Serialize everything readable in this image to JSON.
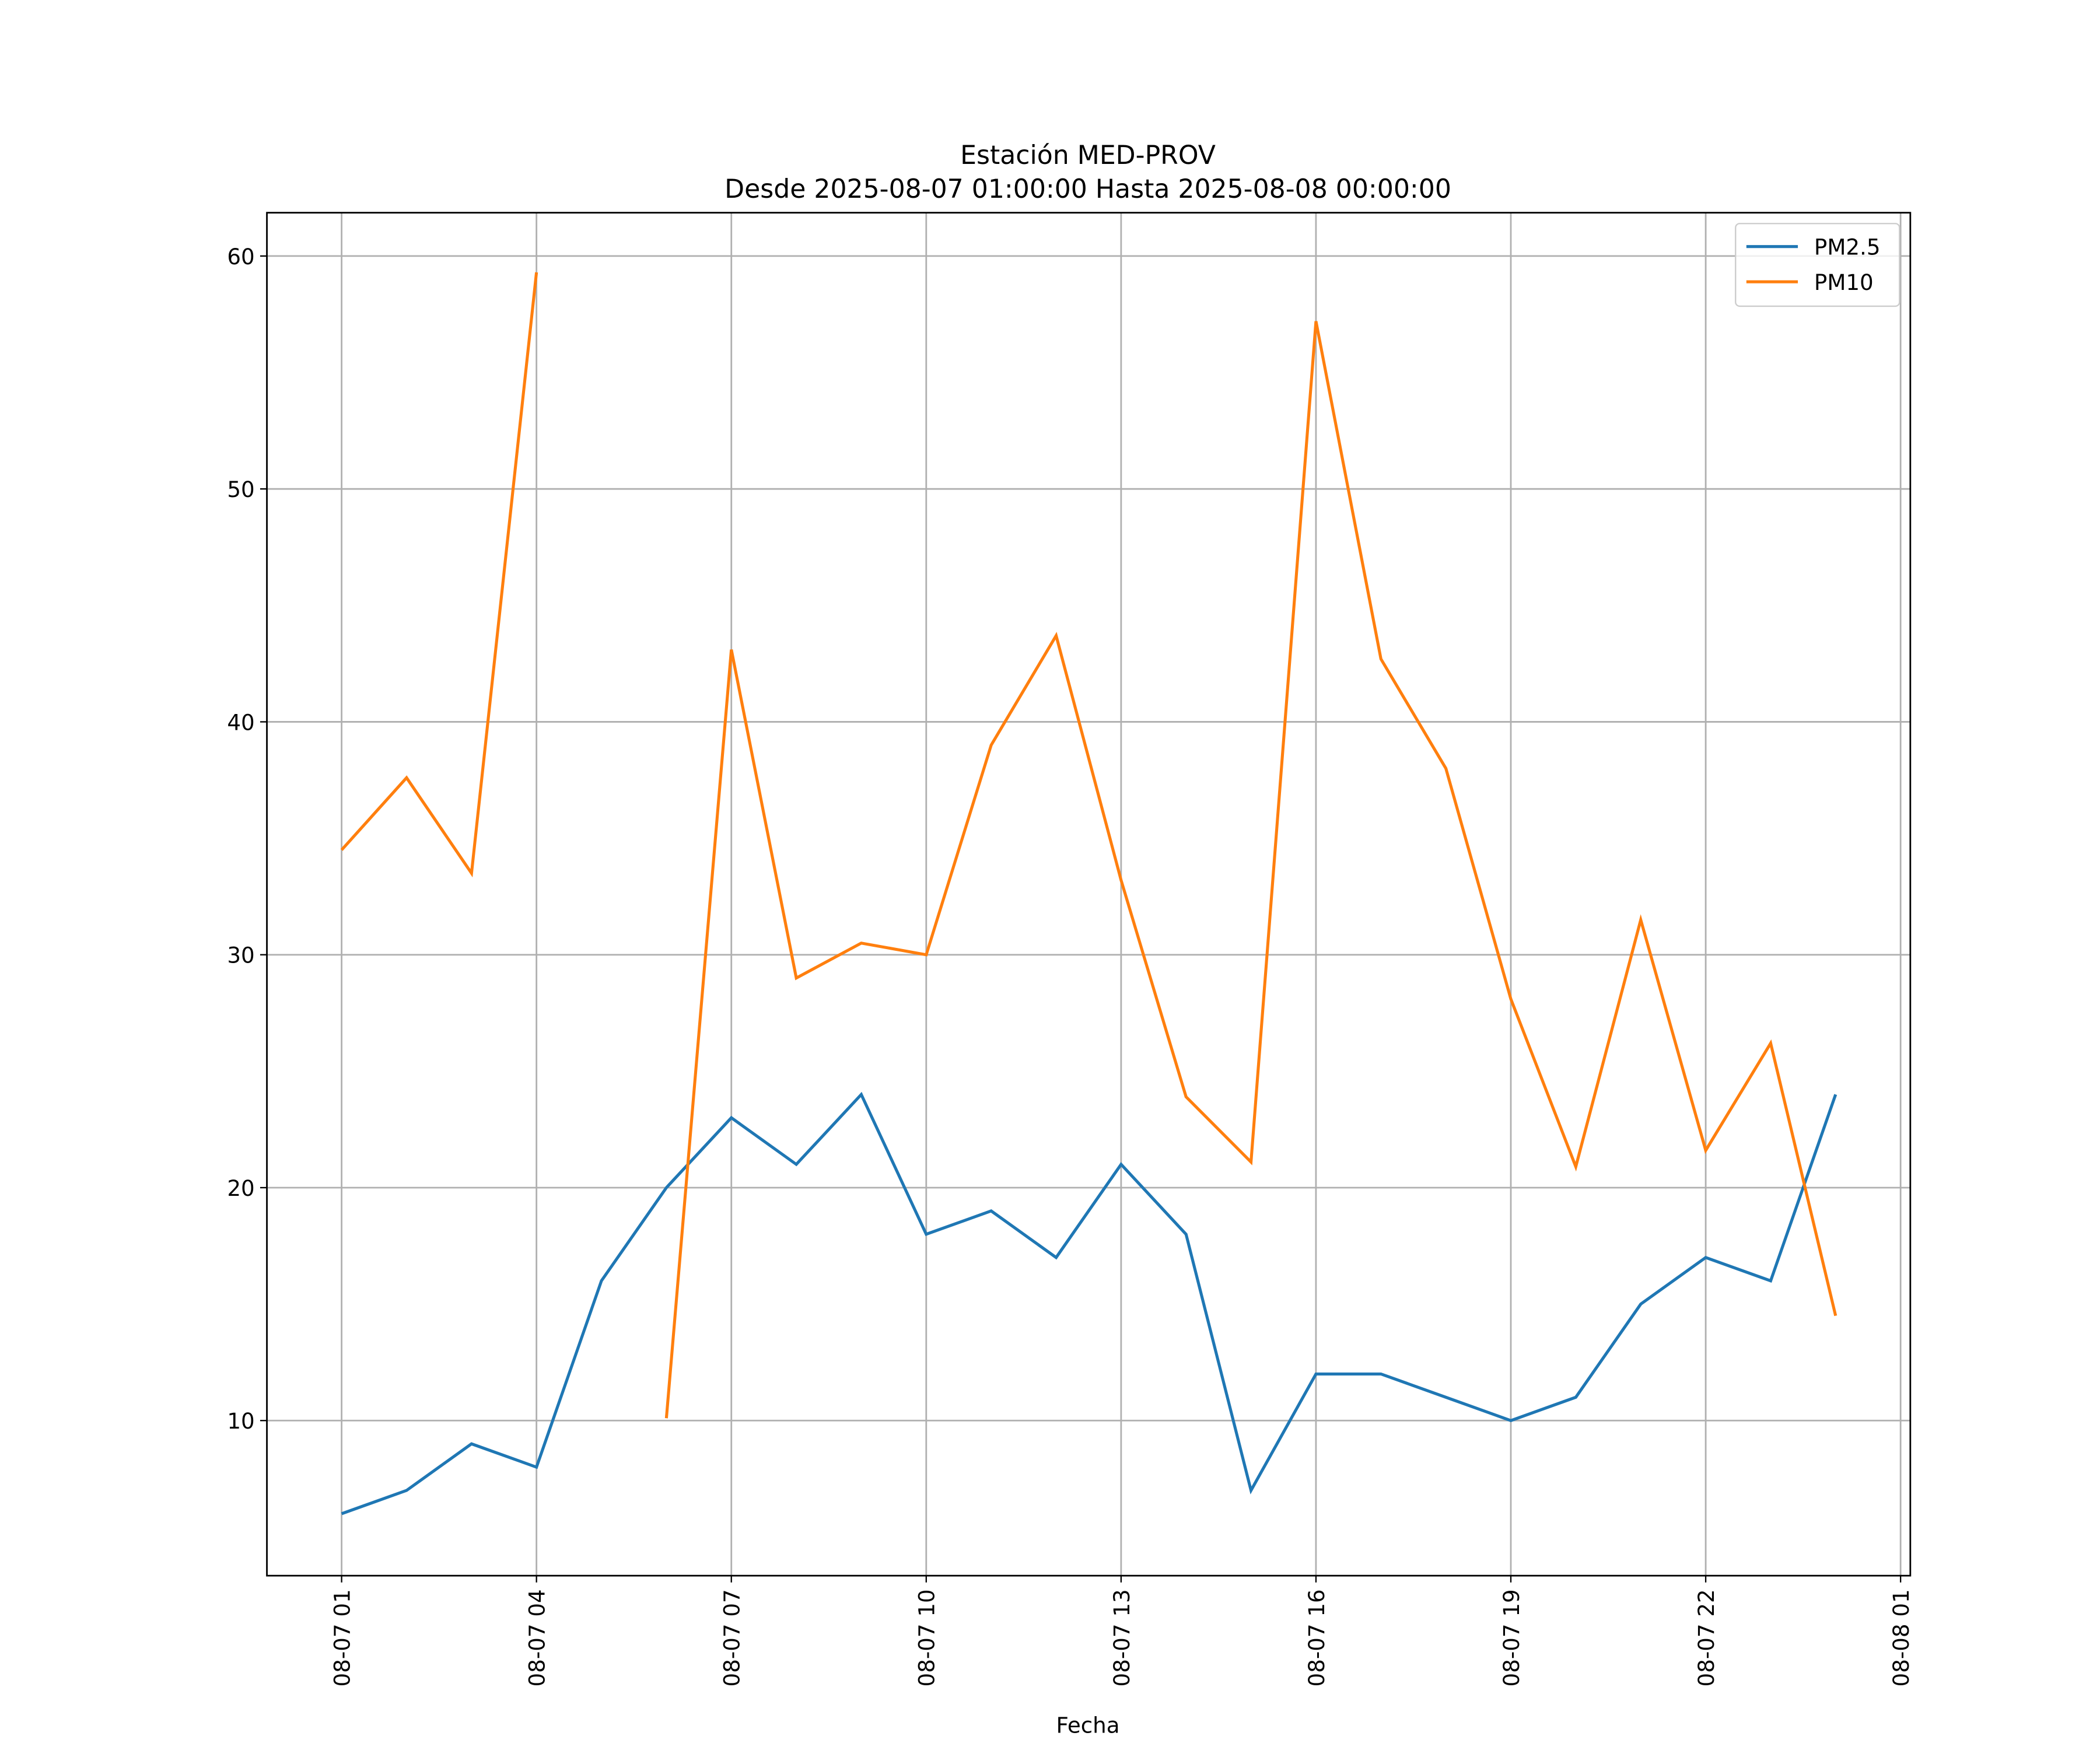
{
  "chart_data": {
    "type": "line",
    "title": "Estación MED-PROV",
    "subtitle": "Desde 2025-08-07 01:00:00 Hasta 2025-08-08 00:00:00",
    "xlabel": "Fecha",
    "x": [
      "08-07 01",
      "08-07 02",
      "08-07 03",
      "08-07 04",
      "08-07 05",
      "08-07 06",
      "08-07 07",
      "08-07 08",
      "08-07 09",
      "08-07 10",
      "08-07 11",
      "08-07 12",
      "08-07 13",
      "08-07 14",
      "08-07 15",
      "08-07 16",
      "08-07 17",
      "08-07 18",
      "08-07 19",
      "08-07 20",
      "08-07 21",
      "08-07 22",
      "08-07 23",
      "08-08 00"
    ],
    "series": [
      {
        "name": "PM2.5",
        "color": "#1f77b4",
        "values": [
          6,
          7,
          9,
          8,
          16,
          20,
          23,
          21,
          24,
          18,
          19,
          17,
          21,
          18,
          7,
          12,
          12,
          11,
          10,
          11,
          15,
          17,
          16,
          24
        ]
      },
      {
        "name": "PM10",
        "color": "#ff7f0e",
        "values": [
          34.5,
          37.6,
          33.5,
          59.3,
          null,
          10.1,
          43.1,
          29.0,
          30.5,
          30.0,
          39.0,
          43.7,
          33.2,
          23.9,
          21.1,
          57.2,
          42.7,
          38.0,
          28.1,
          20.9,
          31.5,
          21.6,
          26.2,
          14.5
        ]
      }
    ],
    "xlim": [
      "08-06 23:51",
      "08-08 01:09"
    ],
    "xticks": [
      "08-07 01",
      "08-07 04",
      "08-07 07",
      "08-07 10",
      "08-07 13",
      "08-07 16",
      "08-07 19",
      "08-07 22",
      "08-08 01"
    ],
    "ylim": [
      3.34,
      61.86
    ],
    "yticks": [
      10,
      20,
      30,
      40,
      50,
      60
    ],
    "grid": true,
    "legend": "upper right"
  }
}
